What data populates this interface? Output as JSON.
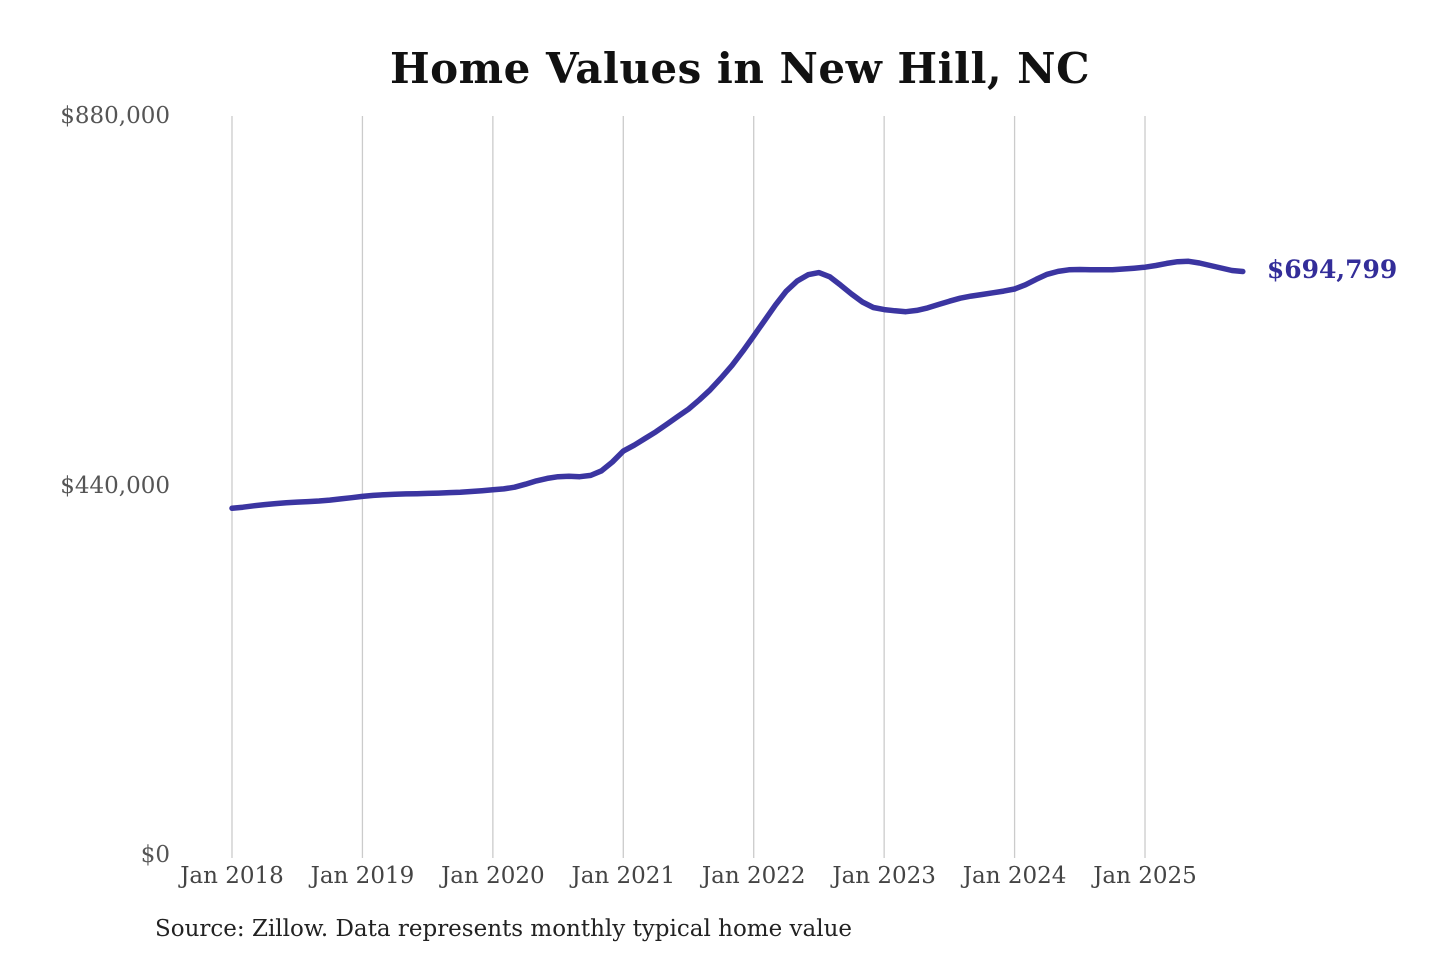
{
  "chart": {
    "title": "Home Values in New Hill, NC",
    "end_label": "$694,799",
    "source": "Source: Zillow. Data represents monthly typical home value",
    "colors": {
      "line": "#3b35a1",
      "end_label": "#332d99",
      "gridline": "#cbcbcb",
      "axis_text": "#4a4a4a",
      "background": "#ffffff"
    }
  },
  "chart_data": {
    "type": "line",
    "title": "Home Values in New Hill, NC",
    "xlabel": "",
    "ylabel": "",
    "x_start": "Jan 2018",
    "frequency": "monthly",
    "x_tick_labels": [
      "Jan 2018",
      "Jan 2019",
      "Jan 2020",
      "Jan 2021",
      "Jan 2022",
      "Jan 2023",
      "Jan 2024",
      "Jan 2025"
    ],
    "y_tick_labels": [
      "$0",
      "$440,000",
      "$880,000"
    ],
    "y_tick_values": [
      0,
      440000,
      880000
    ],
    "ylim": [
      0,
      880000
    ],
    "grid": "vertical-only",
    "legend": "none",
    "annotations": [
      {
        "text": "$694,799",
        "position": "line-end"
      }
    ],
    "series": [
      {
        "name": "Typical home value",
        "values": [
          413000,
          414200,
          415800,
          417200,
          418400,
          419400,
          420200,
          420800,
          421600,
          422600,
          424000,
          425500,
          427000,
          428200,
          429000,
          429600,
          430000,
          430200,
          430600,
          431000,
          431500,
          432000,
          432800,
          433800,
          435000,
          436000,
          438000,
          441500,
          445500,
          448500,
          450500,
          451000,
          450500,
          452000,
          457500,
          468000,
          481000,
          488000,
          496000,
          504000,
          513000,
          522000,
          531000,
          542000,
          554000,
          568000,
          583000,
          600000,
          618000,
          636500,
          655000,
          671500,
          683500,
          691000,
          693500,
          688500,
          678500,
          668000,
          658500,
          652000,
          649500,
          648000,
          647000,
          648500,
          651500,
          655500,
          659500,
          663000,
          665500,
          667500,
          669500,
          671500,
          674000,
          679000,
          685500,
          691500,
          695000,
          696800,
          697200,
          697000,
          696800,
          697000,
          697800,
          698800,
          700000,
          702000,
          704500,
          706500,
          707000,
          705000,
          702000,
          699000,
          696000,
          694799
        ]
      }
    ]
  }
}
